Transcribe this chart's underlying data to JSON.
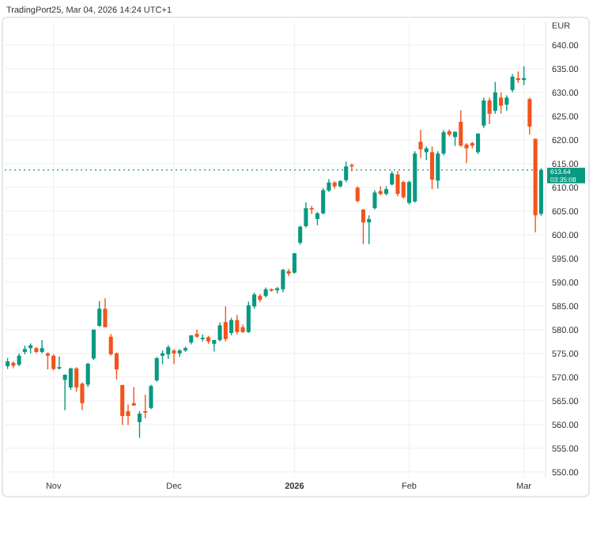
{
  "chart_data": {
    "type": "candlestick",
    "annotations": [
      "TradingPort25, Mar 04, 2026 14:24 UTC+1",
      "03:35:08"
    ],
    "ylabel": "EUR",
    "categories": [
      null,
      null,
      null,
      null,
      null,
      null,
      null,
      null,
      "Nov",
      null,
      null,
      null,
      null,
      null,
      null,
      null,
      null,
      null,
      null,
      null,
      null,
      null,
      null,
      null,
      null,
      null,
      null,
      null,
      null,
      "Dec",
      null,
      null,
      null,
      null,
      null,
      null,
      null,
      null,
      null,
      null,
      null,
      null,
      null,
      null,
      null,
      null,
      null,
      null,
      null,
      null,
      "2026",
      null,
      null,
      null,
      null,
      null,
      null,
      null,
      null,
      null,
      null,
      null,
      null,
      null,
      null,
      null,
      null,
      null,
      null,
      null,
      "Feb",
      null,
      null,
      null,
      null,
      null,
      null,
      null,
      null,
      null,
      null,
      null,
      null,
      null,
      null,
      null,
      null,
      null,
      null,
      null,
      "Mar",
      null,
      null,
      null
    ],
    "ohlc": [
      [
        572.3,
        574,
        571.7,
        573.3
      ],
      [
        573,
        573.3,
        571.9,
        572.4
      ],
      [
        572.6,
        575,
        572.3,
        574.5
      ],
      [
        575.3,
        576.6,
        574.8,
        575.9
      ],
      [
        576.1,
        577.1,
        575,
        576.7
      ],
      [
        576.1,
        576.3,
        575,
        575.3
      ],
      [
        575.3,
        577.8,
        575,
        576.1
      ],
      [
        575,
        575.2,
        571.6,
        574.5
      ],
      [
        574.5,
        574.8,
        571.4,
        571.7
      ],
      [
        571.8,
        574.3,
        571.6,
        572.1
      ],
      [
        569.4,
        570.5,
        563,
        570.5
      ],
      [
        567.8,
        572,
        567.3,
        571.8
      ],
      [
        571.8,
        572.1,
        566.9,
        567.8
      ],
      [
        568.6,
        568.9,
        563,
        564.5
      ],
      [
        568.4,
        573,
        567.9,
        572.8
      ],
      [
        573.9,
        580,
        573.6,
        580
      ],
      [
        580.8,
        586,
        580.6,
        584.4
      ],
      [
        584.4,
        586.6,
        580.5,
        580.5
      ],
      [
        578.5,
        579.1,
        574.5,
        574.8
      ],
      [
        575,
        575.2,
        569.5,
        571.6
      ],
      [
        568.3,
        568.4,
        559.9,
        561.8
      ],
      [
        562.8,
        564.2,
        559.9,
        561.8
      ],
      [
        564.5,
        567.9,
        564,
        564
      ],
      [
        560.5,
        562.8,
        557.2,
        562.3
      ],
      [
        562.8,
        566.3,
        561.3,
        562.5
      ],
      [
        563.5,
        568.4,
        563.2,
        568.1
      ],
      [
        569.3,
        574.2,
        569,
        574
      ],
      [
        574.5,
        575.6,
        572.7,
        575
      ],
      [
        574.8,
        576.7,
        573.8,
        576.3
      ],
      [
        575.6,
        575.9,
        572.7,
        575
      ],
      [
        575,
        575.9,
        574.3,
        575.6
      ],
      [
        575.6,
        576.4,
        575.3,
        576.1
      ],
      [
        577.3,
        578.8,
        576.9,
        578.8
      ],
      [
        579.1,
        580,
        578.3,
        578.5
      ],
      [
        578,
        579,
        577.5,
        578.3
      ],
      [
        578.4,
        578.7,
        577,
        577.5
      ],
      [
        577,
        577.8,
        575.4,
        577.8
      ],
      [
        577.8,
        581.5,
        577.5,
        580.9
      ],
      [
        581.6,
        584.9,
        577.5,
        578
      ],
      [
        579.3,
        582.5,
        578.8,
        582
      ],
      [
        582,
        583.1,
        579,
        579.5
      ],
      [
        580.5,
        581.1,
        579.3,
        579.5
      ],
      [
        579.5,
        585.9,
        579.3,
        585.1
      ],
      [
        584.9,
        587.8,
        584.4,
        587.4
      ],
      [
        587.1,
        587.5,
        585.8,
        586.3
      ],
      [
        587.1,
        588.9,
        586.8,
        588.5
      ],
      [
        588.5,
        588.7,
        588,
        588.2
      ],
      [
        588.3,
        589,
        587.6,
        588.7
      ],
      [
        588.5,
        592.8,
        587.9,
        592.6
      ],
      [
        592.3,
        592.8,
        591.3,
        591.8
      ],
      [
        592,
        596.1,
        591.8,
        596.1
      ],
      [
        598.3,
        601.9,
        597.9,
        601.7
      ],
      [
        601.8,
        606.8,
        601.5,
        605.6
      ],
      [
        605.6,
        606.1,
        604.4,
        605.3
      ],
      [
        603.3,
        604.8,
        602,
        604.5
      ],
      [
        604.5,
        609.8,
        604.3,
        609.4
      ],
      [
        609.3,
        611.7,
        609,
        611
      ],
      [
        611,
        611.3,
        609.7,
        610.2
      ],
      [
        610.2,
        611.5,
        609.9,
        611.3
      ],
      [
        611.5,
        615.4,
        611.1,
        614.4
      ],
      [
        614.7,
        615,
        613.4,
        614.4
      ],
      [
        609.9,
        610.2,
        606.8,
        607.1
      ],
      [
        605.3,
        605.4,
        598,
        602.6
      ],
      [
        602.6,
        604.1,
        598,
        603.3
      ],
      [
        605.6,
        609.4,
        605.3,
        608.9
      ],
      [
        609.2,
        610.2,
        608.3,
        608.6
      ],
      [
        608.6,
        610.2,
        608.3,
        609.6
      ],
      [
        610.6,
        613.4,
        610.4,
        612.9
      ],
      [
        612.7,
        613.4,
        608.1,
        608.6
      ],
      [
        611.1,
        611.4,
        607.6,
        607.9
      ],
      [
        606.7,
        611.4,
        606.4,
        611.1
      ],
      [
        607,
        617.6,
        606.8,
        617.1
      ],
      [
        619.6,
        622.1,
        616.2,
        618
      ],
      [
        617.4,
        618.6,
        615.7,
        618.2
      ],
      [
        617.4,
        618.6,
        609.6,
        611.6
      ],
      [
        611.4,
        617.6,
        609.7,
        617.1
      ],
      [
        617.1,
        622.1,
        616.7,
        621.6
      ],
      [
        621.8,
        622.2,
        620.7,
        621.1
      ],
      [
        620.6,
        621.7,
        618.7,
        621.7
      ],
      [
        623.8,
        626.2,
        618.5,
        618.8
      ],
      [
        619,
        619.3,
        615.1,
        618.2
      ],
      [
        619.3,
        619.6,
        618.2,
        618.8
      ],
      [
        617.4,
        621.4,
        617,
        621.3
      ],
      [
        623,
        628.9,
        622.5,
        628.3
      ],
      [
        628.3,
        628.9,
        623.3,
        625.5
      ],
      [
        626.1,
        632.2,
        625.5,
        630
      ],
      [
        628.9,
        630,
        625.5,
        627.2
      ],
      [
        627.4,
        629.4,
        626.1,
        628.9
      ],
      [
        630.5,
        633.9,
        630,
        633.3
      ],
      [
        633,
        634.4,
        632,
        632.6
      ],
      [
        632.6,
        635.5,
        631.5,
        633
      ],
      [
        628.6,
        628.9,
        621.1,
        622.8
      ],
      [
        620.2,
        620.2,
        600.5,
        604.1
      ],
      [
        604.4,
        614,
        604,
        613.64
      ]
    ],
    "colors": [
      "#089981",
      "#f2541b",
      "#089981",
      "#089981",
      "#089981",
      "#f2541b",
      "#089981",
      "#f2541b",
      "#f2541b",
      "#089981",
      "#089981",
      "#089981",
      "#f2541b",
      "#f2541b",
      "#089981",
      "#089981",
      "#089981",
      "#f2541b",
      "#f2541b",
      "#f2541b",
      "#f2541b",
      "#f2541b",
      "#f2541b",
      "#089981",
      "#f2541b",
      "#089981",
      "#089981",
      "#089981",
      "#089981",
      "#f2541b",
      "#089981",
      "#089981",
      "#089981",
      "#f2541b",
      "#089981",
      "#f2541b",
      "#089981",
      "#089981",
      "#f2541b",
      "#089981",
      "#f2541b",
      "#f2541b",
      "#089981",
      "#089981",
      "#f2541b",
      "#089981",
      "#f2541b",
      "#089981",
      "#089981",
      "#f2541b",
      "#089981",
      "#089981",
      "#089981",
      "#f2541b",
      "#089981",
      "#089981",
      "#089981",
      "#f2541b",
      "#089981",
      "#089981",
      "#f2541b",
      "#f2541b",
      "#f2541b",
      "#089981",
      "#089981",
      "#f2541b",
      "#089981",
      "#089981",
      "#f2541b",
      "#f2541b",
      "#089981",
      "#089981",
      "#f2541b",
      "#089981",
      "#f2541b",
      "#089981",
      "#089981",
      "#f2541b",
      "#089981",
      "#f2541b",
      "#f2541b",
      "#f2541b",
      "#089981",
      "#089981",
      "#f2541b",
      "#089981",
      "#f2541b",
      "#089981",
      "#089981",
      "#f2541b",
      "#089981",
      "#f2541b",
      "#f2541b",
      "#089981"
    ],
    "ylim": [
      548.8,
      644.8
    ],
    "yticks": [
      {
        "value": 550,
        "label": "550.00"
      },
      {
        "value": 555,
        "label": "555.00"
      },
      {
        "value": 560,
        "label": "560.00"
      },
      {
        "value": 565,
        "label": "565.00"
      },
      {
        "value": 570,
        "label": "570.00"
      },
      {
        "value": 575,
        "label": "575.00"
      },
      {
        "value": 580,
        "label": "580.00"
      },
      {
        "value": 585,
        "label": "585.00"
      },
      {
        "value": 590,
        "label": "590.00"
      },
      {
        "value": 595,
        "label": "595.00"
      },
      {
        "value": 600,
        "label": "600.00"
      },
      {
        "value": 605,
        "label": "605.00"
      },
      {
        "value": 610,
        "label": "610.00"
      },
      {
        "value": 615,
        "label": "615.00"
      },
      {
        "value": 620,
        "label": "620.00"
      },
      {
        "value": 625,
        "label": "625.00"
      },
      {
        "value": 630,
        "label": "630.00"
      },
      {
        "value": 635,
        "label": "635.00"
      },
      {
        "value": 640,
        "label": "640.00"
      }
    ],
    "grid": true,
    "ref_lines": [
      {
        "axis": "y",
        "value": 613.64,
        "label": "613.64",
        "color": "#089981",
        "line_style": "dotted"
      }
    ]
  }
}
